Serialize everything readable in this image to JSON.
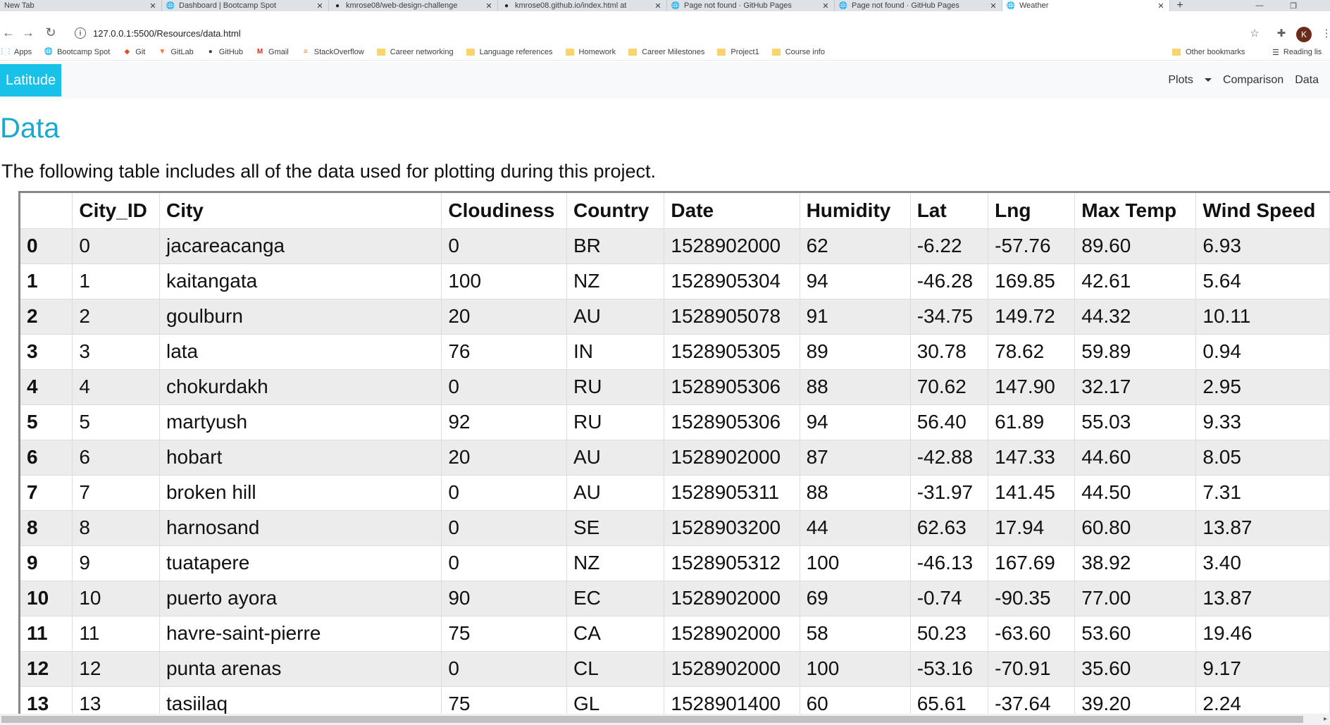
{
  "browser": {
    "tabs": [
      {
        "title": "New Tab",
        "icon": "none"
      },
      {
        "title": "Dashboard | Bootcamp Spot",
        "icon": "globe-icon"
      },
      {
        "title": "kmrose08/web-design-challenge",
        "icon": "github-icon"
      },
      {
        "title": "kmrose08.github.io/index.html at",
        "icon": "github-icon"
      },
      {
        "title": "Page not found · GitHub Pages",
        "icon": "globe-icon"
      },
      {
        "title": "Page not found · GitHub Pages",
        "icon": "globe-icon"
      },
      {
        "title": "Weather",
        "icon": "globe-icon"
      }
    ],
    "active_tab": 6,
    "url": "127.0.0.1:5500/Resources/data.html",
    "profile_initial": "K",
    "bookmarks": [
      {
        "label": "Apps",
        "type": "apps"
      },
      {
        "label": "Bootcamp Spot",
        "type": "site"
      },
      {
        "label": "Git",
        "type": "site"
      },
      {
        "label": "GitLab",
        "type": "site"
      },
      {
        "label": "GitHub",
        "type": "site"
      },
      {
        "label": "Gmail",
        "type": "site"
      },
      {
        "label": "StackOverflow",
        "type": "site"
      },
      {
        "label": "Career networking",
        "type": "folder"
      },
      {
        "label": "Language references",
        "type": "folder"
      },
      {
        "label": "Homework",
        "type": "folder"
      },
      {
        "label": "Career Milestones",
        "type": "folder"
      },
      {
        "label": "Project1",
        "type": "folder"
      },
      {
        "label": "Course info",
        "type": "folder"
      }
    ],
    "other_bookmarks": "Other bookmarks",
    "reading_list": "Reading lis"
  },
  "navbar": {
    "brand": "Latitude",
    "links": {
      "plots": "Plots",
      "comparison": "Comparison",
      "data": "Data"
    }
  },
  "page": {
    "title": "Data",
    "lead": "The following table includes all of the data used for plotting during this project."
  },
  "table": {
    "columns": [
      "",
      "City_ID",
      "City",
      "Cloudiness",
      "Country",
      "Date",
      "Humidity",
      "Lat",
      "Lng",
      "Max Temp",
      "Wind Speed"
    ],
    "rows": [
      [
        "0",
        "0",
        "jacareacanga",
        "0",
        "BR",
        "1528902000",
        "62",
        "-6.22",
        "-57.76",
        "89.60",
        "6.93"
      ],
      [
        "1",
        "1",
        "kaitangata",
        "100",
        "NZ",
        "1528905304",
        "94",
        "-46.28",
        "169.85",
        "42.61",
        "5.64"
      ],
      [
        "2",
        "2",
        "goulburn",
        "20",
        "AU",
        "1528905078",
        "91",
        "-34.75",
        "149.72",
        "44.32",
        "10.11"
      ],
      [
        "3",
        "3",
        "lata",
        "76",
        "IN",
        "1528905305",
        "89",
        "30.78",
        "78.62",
        "59.89",
        "0.94"
      ],
      [
        "4",
        "4",
        "chokurdakh",
        "0",
        "RU",
        "1528905306",
        "88",
        "70.62",
        "147.90",
        "32.17",
        "2.95"
      ],
      [
        "5",
        "5",
        "martyush",
        "92",
        "RU",
        "1528905306",
        "94",
        "56.40",
        "61.89",
        "55.03",
        "9.33"
      ],
      [
        "6",
        "6",
        "hobart",
        "20",
        "AU",
        "1528902000",
        "87",
        "-42.88",
        "147.33",
        "44.60",
        "8.05"
      ],
      [
        "7",
        "7",
        "broken hill",
        "0",
        "AU",
        "1528905311",
        "88",
        "-31.97",
        "141.45",
        "44.50",
        "7.31"
      ],
      [
        "8",
        "8",
        "harnosand",
        "0",
        "SE",
        "1528903200",
        "44",
        "62.63",
        "17.94",
        "60.80",
        "13.87"
      ],
      [
        "9",
        "9",
        "tuatapere",
        "0",
        "NZ",
        "1528905312",
        "100",
        "-46.13",
        "167.69",
        "38.92",
        "3.40"
      ],
      [
        "10",
        "10",
        "puerto ayora",
        "90",
        "EC",
        "1528902000",
        "69",
        "-0.74",
        "-90.35",
        "77.00",
        "13.87"
      ],
      [
        "11",
        "11",
        "havre-saint-pierre",
        "75",
        "CA",
        "1528902000",
        "58",
        "50.23",
        "-63.60",
        "53.60",
        "19.46"
      ],
      [
        "12",
        "12",
        "punta arenas",
        "0",
        "CL",
        "1528902000",
        "100",
        "-53.16",
        "-70.91",
        "35.60",
        "9.17"
      ],
      [
        "13",
        "13",
        "tasiilaq",
        "75",
        "GL",
        "1528901400",
        "60",
        "65.61",
        "-37.64",
        "39.20",
        "2.24"
      ]
    ]
  }
}
